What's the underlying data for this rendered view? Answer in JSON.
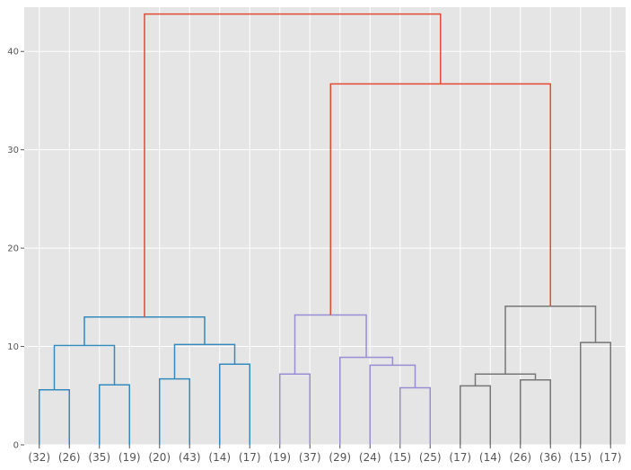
{
  "chart_data": {
    "type": "dendrogram",
    "title": "",
    "xlabel": "",
    "ylabel": "",
    "ylim": [
      0,
      44.5
    ],
    "yticks": [
      0,
      10,
      20,
      30,
      40
    ],
    "grid": true,
    "background": "#e5e5e5",
    "grid_color": "#ffffff",
    "leaf_labels": [
      "(32)",
      "(26)",
      "(35)",
      "(19)",
      "(20)",
      "(43)",
      "(14)",
      "(17)",
      "(19)",
      "(37)",
      "(29)",
      "(24)",
      "(15)",
      "(25)",
      "(17)",
      "(14)",
      "(26)",
      "(36)",
      "(15)",
      "(17)"
    ],
    "merges": [
      {
        "left": 0,
        "right": 1,
        "height": 5.6,
        "color": "#348abd"
      },
      {
        "left": 2,
        "right": 3,
        "height": 6.1,
        "color": "#348abd"
      },
      {
        "left": 4,
        "right": 5,
        "height": 6.7,
        "color": "#348abd"
      },
      {
        "left": 6,
        "right": 7,
        "height": 8.2,
        "color": "#348abd"
      },
      {
        "left": 20,
        "right": 21,
        "height": 10.1,
        "color": "#348abd"
      },
      {
        "left": 22,
        "right": 23,
        "height": 10.2,
        "color": "#348abd"
      },
      {
        "left": 24,
        "right": 25,
        "height": 13.0,
        "color": "#348abd"
      },
      {
        "left": 8,
        "right": 9,
        "height": 7.2,
        "color": "#988ed5"
      },
      {
        "left": 12,
        "right": 13,
        "height": 5.8,
        "color": "#988ed5"
      },
      {
        "left": 11,
        "right": 28,
        "height": 8.1,
        "color": "#988ed5"
      },
      {
        "left": 10,
        "right": 29,
        "height": 8.9,
        "color": "#988ed5"
      },
      {
        "left": 27,
        "right": 30,
        "height": 13.2,
        "color": "#988ed5"
      },
      {
        "left": 14,
        "right": 15,
        "height": 6.0,
        "color": "#777777"
      },
      {
        "left": 16,
        "right": 17,
        "height": 6.6,
        "color": "#777777"
      },
      {
        "left": 32,
        "right": 33,
        "height": 7.2,
        "color": "#777777"
      },
      {
        "left": 18,
        "right": 19,
        "height": 10.4,
        "color": "#777777"
      },
      {
        "left": 34,
        "right": 35,
        "height": 14.1,
        "color": "#777777"
      },
      {
        "left": 31,
        "right": 36,
        "height": 36.7,
        "color": "#e24a33"
      },
      {
        "left": 26,
        "right": 37,
        "height": 43.8,
        "color": "#e24a33"
      }
    ]
  }
}
